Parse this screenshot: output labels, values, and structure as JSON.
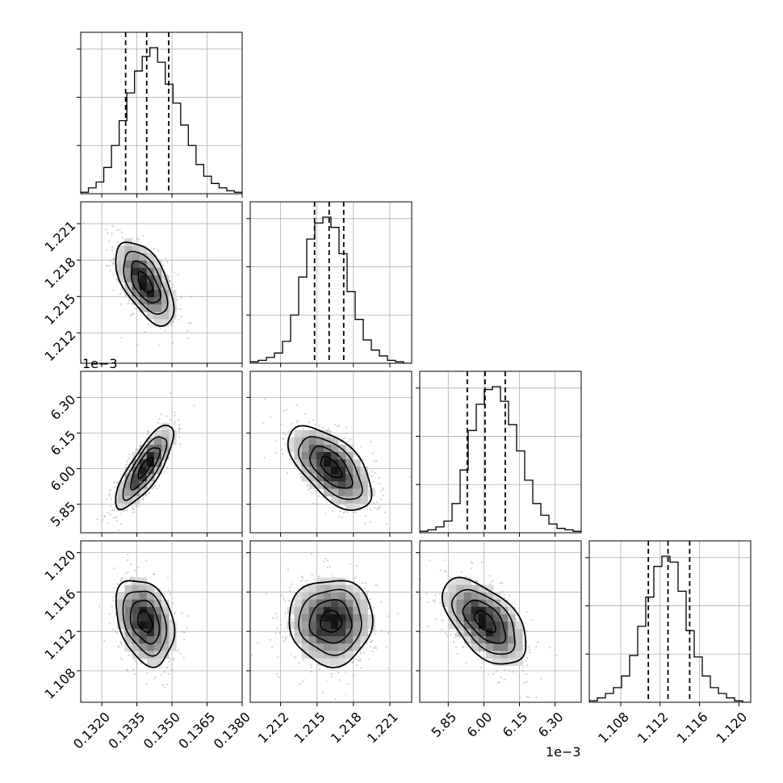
{
  "chart_data": {
    "type": "corner",
    "parameters": [
      {
        "index": 0,
        "range": [
          0.1311,
          0.138
        ],
        "ticks": [
          0.132,
          0.1335,
          0.135,
          0.1365,
          0.138
        ],
        "tick_labels": [
          "0.1320",
          "0.1335",
          "0.1350",
          "0.1365",
          "0.1380"
        ],
        "offset_text": "",
        "quantiles": [
          0.13302,
          0.13392,
          0.13486
        ]
      },
      {
        "index": 1,
        "range": [
          1.2095,
          1.2228
        ],
        "ticks": [
          1.212,
          1.215,
          1.218,
          1.221
        ],
        "tick_labels": [
          "1.212",
          "1.215",
          "1.218",
          "1.221"
        ],
        "offset_text": "",
        "quantiles": [
          1.2148,
          1.216,
          1.2172
        ]
      },
      {
        "index": 2,
        "range": [
          5.73,
          6.41
        ],
        "ticks": [
          5.85,
          6.0,
          6.15,
          6.3
        ],
        "tick_labels": [
          "5.85",
          "6.00",
          "6.15",
          "6.30"
        ],
        "offset_text": "1e−3",
        "quantiles": [
          5.93,
          6.005,
          6.09
        ]
      },
      {
        "index": 3,
        "range": [
          1.1048,
          1.1212
        ],
        "ticks": [
          1.108,
          1.112,
          1.116,
          1.12
        ],
        "tick_labels": [
          "1.108",
          "1.112",
          "1.116",
          "1.120"
        ],
        "offset_text": "",
        "quantiles": [
          1.1108,
          1.1128,
          1.115
        ]
      }
    ],
    "histograms": [
      [
        0.01,
        0.04,
        0.08,
        0.18,
        0.33,
        0.5,
        0.69,
        0.84,
        0.94,
        1.0,
        0.9,
        0.75,
        0.62,
        0.47,
        0.33,
        0.2,
        0.12,
        0.07,
        0.04,
        0.02,
        0.01
      ],
      [
        0.01,
        0.02,
        0.04,
        0.07,
        0.15,
        0.33,
        0.59,
        0.85,
        0.96,
        1.0,
        0.93,
        0.75,
        0.49,
        0.3,
        0.16,
        0.09,
        0.05,
        0.02,
        0.01,
        0.0
      ],
      [
        0.01,
        0.02,
        0.04,
        0.08,
        0.2,
        0.43,
        0.7,
        0.88,
        0.98,
        1.0,
        0.9,
        0.74,
        0.56,
        0.36,
        0.2,
        0.12,
        0.06,
        0.03,
        0.02,
        0.01
      ],
      [
        0.01,
        0.03,
        0.06,
        0.1,
        0.18,
        0.32,
        0.52,
        0.72,
        0.93,
        1.0,
        0.96,
        0.76,
        0.49,
        0.31,
        0.18,
        0.1,
        0.06,
        0.03,
        0.01,
        0.0
      ]
    ],
    "pairs": [
      {
        "x": 0,
        "y": 1,
        "center": [
          0.13385,
          1.21615
        ],
        "sd": [
          0.00062,
          0.00172
        ],
        "rho": -0.58
      },
      {
        "x": 0,
        "y": 2,
        "center": [
          0.13385,
          6.005
        ],
        "sd": [
          0.00062,
          0.088
        ],
        "rho": 0.8
      },
      {
        "x": 0,
        "y": 3,
        "center": [
          0.13385,
          1.113
        ],
        "sd": [
          0.00062,
          0.00218
        ],
        "rho": -0.3
      },
      {
        "x": 1,
        "y": 2,
        "center": [
          1.21615,
          6.005
        ],
        "sd": [
          0.00172,
          0.088
        ],
        "rho": -0.6
      },
      {
        "x": 1,
        "y": 3,
        "center": [
          1.21615,
          1.113
        ],
        "sd": [
          0.00172,
          0.00218
        ],
        "rho": 0.0
      },
      {
        "x": 2,
        "y": 3,
        "center": [
          6.005,
          1.113
        ],
        "sd": [
          0.088,
          0.00218
        ],
        "rho": -0.55
      }
    ],
    "contour_sigma_levels": [
      0.5,
      1.0,
      1.5,
      2.0
    ],
    "grid": true,
    "line_color": "#000000",
    "scatter_color": "#9a9a9a"
  }
}
